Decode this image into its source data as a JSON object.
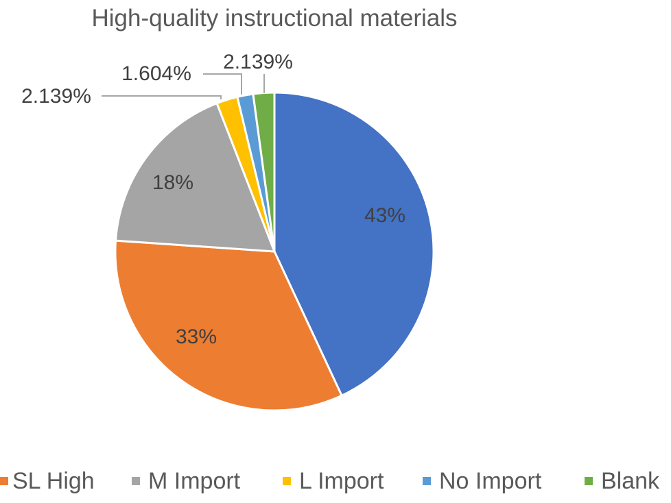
{
  "chart_data": {
    "type": "pie",
    "title": "High-quality instructional materials",
    "series": [
      {
        "name": "",
        "categories": [
          "SL High",
          "M Import",
          "L Import",
          "No Import",
          "Blank"
        ]
      }
    ],
    "slices": [
      {
        "category": "",
        "value": 43,
        "label": "43%",
        "color": "#4472C4"
      },
      {
        "category": "SL High",
        "value": 33,
        "label": "33%",
        "color": "#ED7D31"
      },
      {
        "category": "M Import",
        "value": 18,
        "label": "18%",
        "color": "#A5A5A5"
      },
      {
        "category": "L Import",
        "value": 2.139,
        "label": "2.139%",
        "color": "#FFC000"
      },
      {
        "category": "No Import",
        "value": 1.604,
        "label": "1.604%",
        "color": "#5B9BD5"
      },
      {
        "category": "Blank",
        "value": 2.139,
        "label": "2.139%",
        "color": "#70AD47"
      }
    ],
    "legend": {
      "placement": "bottom",
      "entries": [
        {
          "label": "SL High",
          "color": "#ED7D31"
        },
        {
          "label": "M Import",
          "color": "#A5A5A5"
        },
        {
          "label": "L Import",
          "color": "#FFC000"
        },
        {
          "label": "No Import",
          "color": "#5B9BD5"
        },
        {
          "label": "Blank",
          "color": "#70AD47"
        }
      ]
    }
  }
}
